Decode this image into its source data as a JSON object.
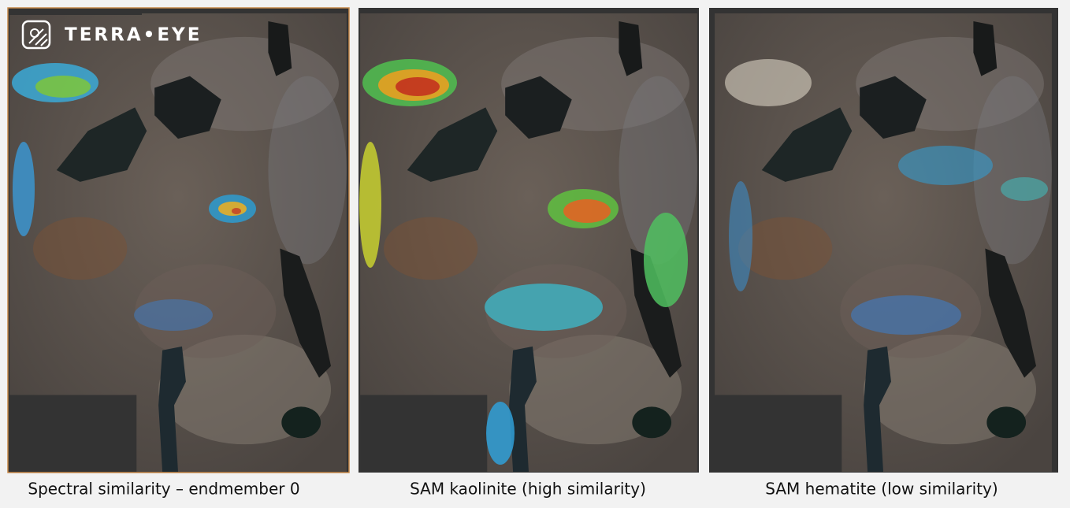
{
  "logo": {
    "text": "TERRA•EYE"
  },
  "panels": [
    {
      "caption": "Spectral similarity – endmember 0"
    },
    {
      "caption": "SAM kaolinite (high similarity)"
    },
    {
      "caption": "SAM hematite (low similarity)"
    }
  ]
}
